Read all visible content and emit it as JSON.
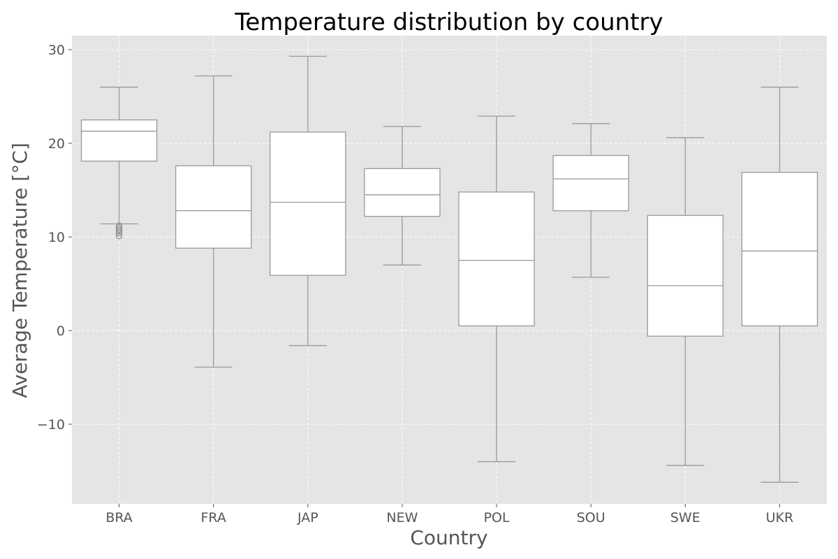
{
  "chart_data": {
    "type": "box",
    "title": "Temperature distribution by country",
    "xlabel": "Country",
    "ylabel": "Average Temperature [°C]",
    "ylim": [
      -18.5,
      31.5
    ],
    "yticks": [
      -10,
      0,
      10,
      20,
      30
    ],
    "ytick_labels": [
      "−10",
      "0",
      "10",
      "20",
      "30"
    ],
    "grid": true,
    "legend": "none",
    "colors": {
      "plot_background": "#e5e5e5",
      "grid": "#ffffff",
      "box_fill": "#ffffff",
      "box_edge": "#999999",
      "text": "#555555",
      "title": "#000000"
    },
    "categories": [
      "BRA",
      "FRA",
      "JAP",
      "NEW",
      "POL",
      "SOU",
      "SWE",
      "UKR"
    ],
    "boxes": [
      {
        "category": "BRA",
        "whisker_low": 11.4,
        "q1": 18.1,
        "median": 21.3,
        "q3": 22.5,
        "whisker_high": 26.0,
        "outliers": [
          11.2,
          11.0,
          10.8,
          10.6,
          10.4,
          10.1
        ]
      },
      {
        "category": "FRA",
        "whisker_low": -3.9,
        "q1": 8.8,
        "median": 12.8,
        "q3": 17.6,
        "whisker_high": 27.2,
        "outliers": []
      },
      {
        "category": "JAP",
        "whisker_low": -1.6,
        "q1": 5.9,
        "median": 13.7,
        "q3": 21.2,
        "whisker_high": 29.3,
        "outliers": []
      },
      {
        "category": "NEW",
        "whisker_low": 7.0,
        "q1": 12.2,
        "median": 14.5,
        "q3": 17.3,
        "whisker_high": 21.8,
        "outliers": []
      },
      {
        "category": "POL",
        "whisker_low": -14.0,
        "q1": 0.5,
        "median": 7.5,
        "q3": 14.8,
        "whisker_high": 22.9,
        "outliers": []
      },
      {
        "category": "SOU",
        "whisker_low": 5.7,
        "q1": 12.8,
        "median": 16.2,
        "q3": 18.7,
        "whisker_high": 22.1,
        "outliers": []
      },
      {
        "category": "SWE",
        "whisker_low": -14.4,
        "q1": -0.6,
        "median": 4.8,
        "q3": 12.3,
        "whisker_high": 20.6,
        "outliers": []
      },
      {
        "category": "UKR",
        "whisker_low": -16.2,
        "q1": 0.5,
        "median": 8.5,
        "q3": 16.9,
        "whisker_high": 26.0,
        "outliers": []
      }
    ]
  }
}
